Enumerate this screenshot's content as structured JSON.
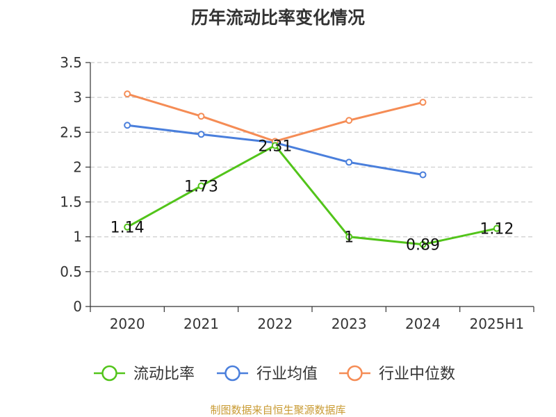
{
  "page_title": "历年流动比率变化情况",
  "footer_source": "制图数据来自恒生聚源数据库",
  "chart_data": {
    "type": "line",
    "title": "历年流动比率变化情况",
    "categories": [
      "2020",
      "2021",
      "2022",
      "2023",
      "2024",
      "2025H1"
    ],
    "ylim": [
      0,
      3.5
    ],
    "yticks": [
      "0",
      "0.5",
      "1",
      "1.5",
      "2",
      "2.5",
      "3",
      "3.5"
    ],
    "grid": true,
    "legend_position": "bottom",
    "series": [
      {
        "name": "流动比率",
        "color": "#52c41a",
        "values": [
          1.14,
          1.73,
          2.31,
          1,
          0.89,
          1.12
        ],
        "labels": [
          "1.14",
          "1.73",
          "2.31",
          "1",
          "0.89",
          "1.12"
        ]
      },
      {
        "name": "行业均值",
        "color": "#4a7fdc",
        "values": [
          2.6,
          2.47,
          2.35,
          2.07,
          1.89,
          null
        ]
      },
      {
        "name": "行业中位数",
        "color": "#f58c55",
        "values": [
          3.05,
          2.73,
          2.37,
          2.67,
          2.93,
          null
        ]
      }
    ]
  }
}
